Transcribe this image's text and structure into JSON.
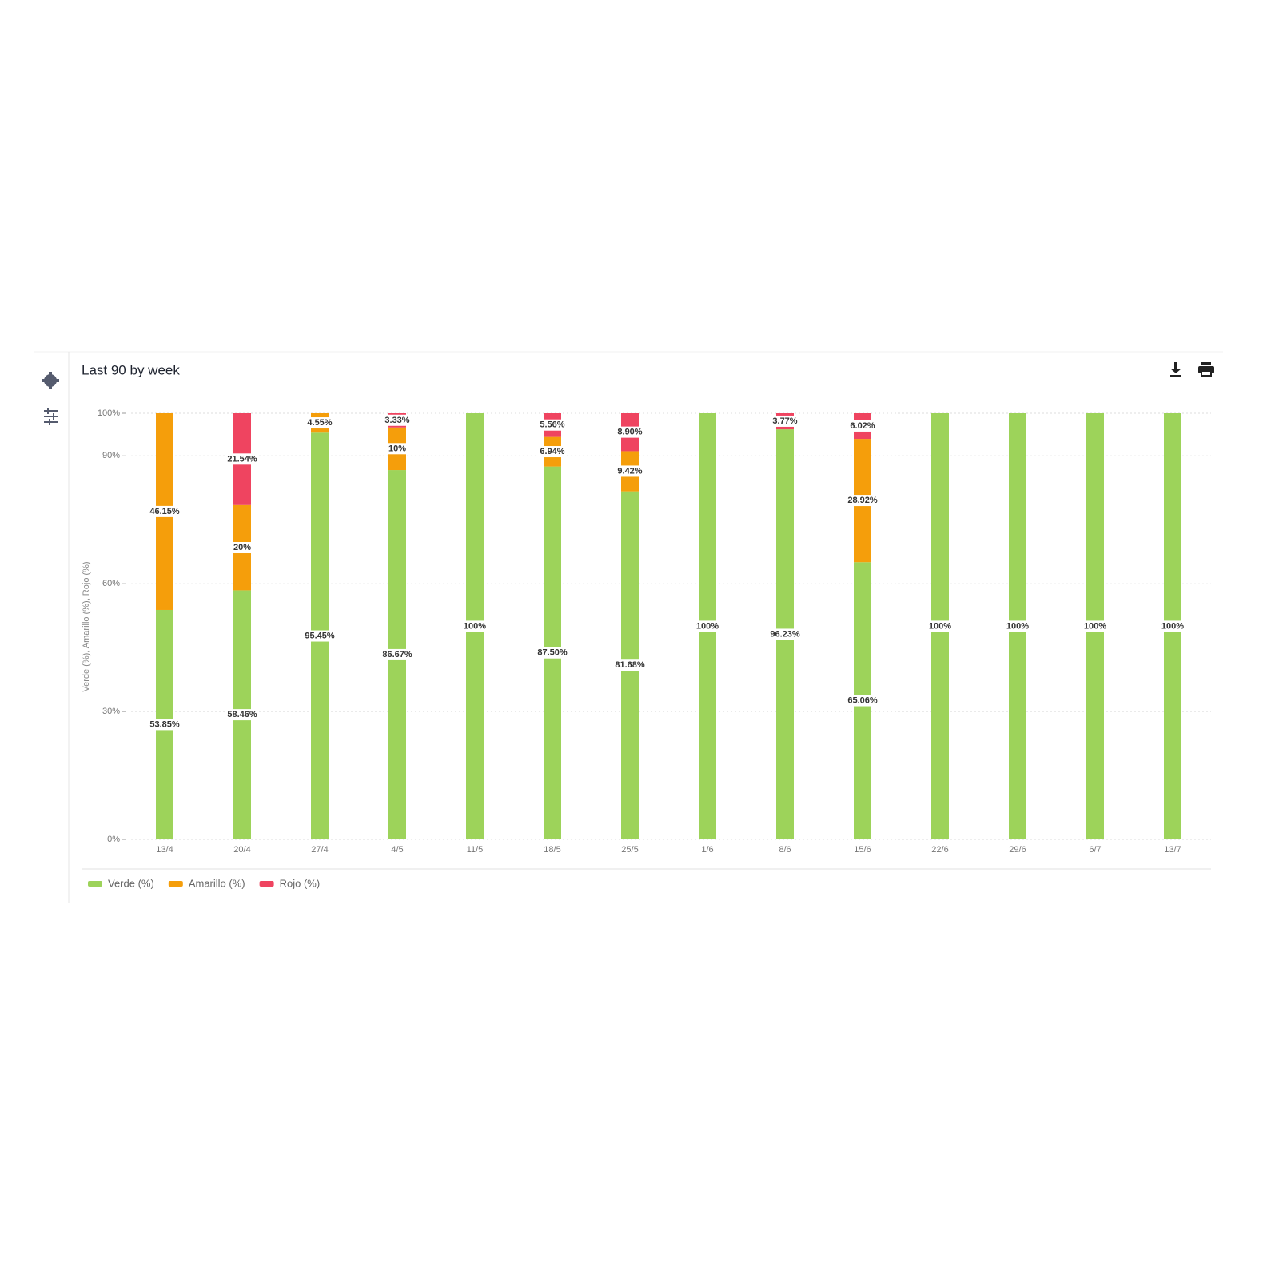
{
  "chart_data": {
    "type": "stacked-bar",
    "title": "Last 90 by week",
    "y_label": "Verde (%), Amarillo (%), Rojo (%)",
    "categories": [
      "13/4",
      "20/4",
      "27/4",
      "4/5",
      "11/5",
      "18/5",
      "25/5",
      "1/6",
      "8/6",
      "15/6",
      "22/6",
      "29/6",
      "6/7",
      "13/7"
    ],
    "series": [
      {
        "name": "Verde (%)",
        "color": "#9dd35a",
        "values": [
          53.85,
          58.46,
          95.45,
          86.67,
          100,
          87.5,
          81.68,
          100,
          96.23,
          65.06,
          100,
          100,
          100,
          100
        ],
        "value_labels": [
          "53.85%",
          "58.46%",
          "95.45%",
          "86.67%",
          "100%",
          "87.50%",
          "81.68%",
          "100%",
          "96.23%",
          "65.06%",
          "100%",
          "100%",
          "100%",
          "100%"
        ]
      },
      {
        "name": "Amarillo (%)",
        "color": "#f59e0b",
        "values": [
          46.15,
          20,
          4.55,
          10,
          0,
          6.94,
          9.42,
          0,
          0,
          28.92,
          0,
          0,
          0,
          0
        ],
        "value_labels": [
          "46.15%",
          "20%",
          "4.55%",
          "10%",
          null,
          "6.94%",
          "9.42%",
          null,
          null,
          "28.92%",
          null,
          null,
          null,
          null
        ]
      },
      {
        "name": "Rojo (%)",
        "color": "#ef4460",
        "values": [
          0,
          21.54,
          0,
          3.33,
          0,
          5.56,
          8.9,
          0,
          3.77,
          6.02,
          0,
          0,
          0,
          0
        ],
        "value_labels": [
          null,
          "21.54%",
          null,
          "3.33%",
          null,
          "5.56%",
          "8.90%",
          null,
          "3.77%",
          "6.02%",
          null,
          null,
          null,
          null
        ]
      }
    ],
    "ylim": [
      0,
      100
    ],
    "yticks": [
      {
        "value": 0,
        "label": "0%"
      },
      {
        "value": 30,
        "label": "30%"
      },
      {
        "value": 60,
        "label": "60%"
      },
      {
        "value": 90,
        "label": "90%"
      },
      {
        "value": 100,
        "label": "100%"
      }
    ],
    "grid": true,
    "legend": "bottom-left"
  }
}
